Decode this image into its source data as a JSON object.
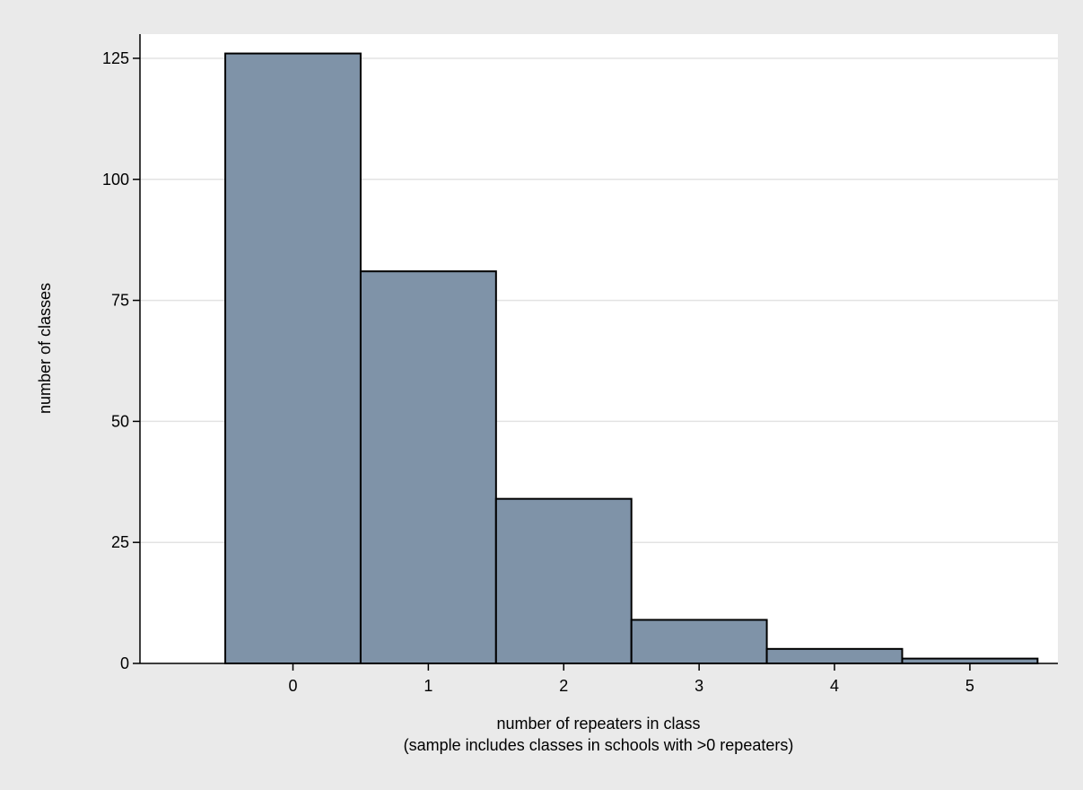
{
  "chart_data": {
    "type": "bar",
    "categories": [
      "0",
      "1",
      "2",
      "3",
      "4",
      "5"
    ],
    "values": [
      126,
      81,
      34,
      9,
      3,
      1
    ],
    "ylabel": "number of classes",
    "xlabel": "number of repeaters in class",
    "xlabel_note": "(sample includes classes in schools with >0 repeaters)",
    "yticks": [
      0,
      25,
      50,
      75,
      100,
      125
    ],
    "xticks": [
      "0",
      "1",
      "2",
      "3",
      "4",
      "5"
    ],
    "ylim": [
      0,
      130
    ],
    "xlim": [
      -1.13,
      5.65
    ],
    "grid": true,
    "colors": {
      "background": "#eaeaea",
      "plot_background": "#ffffff",
      "bar_fill": "#7f93a8",
      "bar_stroke": "#000000",
      "grid": "#e3e3e3"
    }
  }
}
